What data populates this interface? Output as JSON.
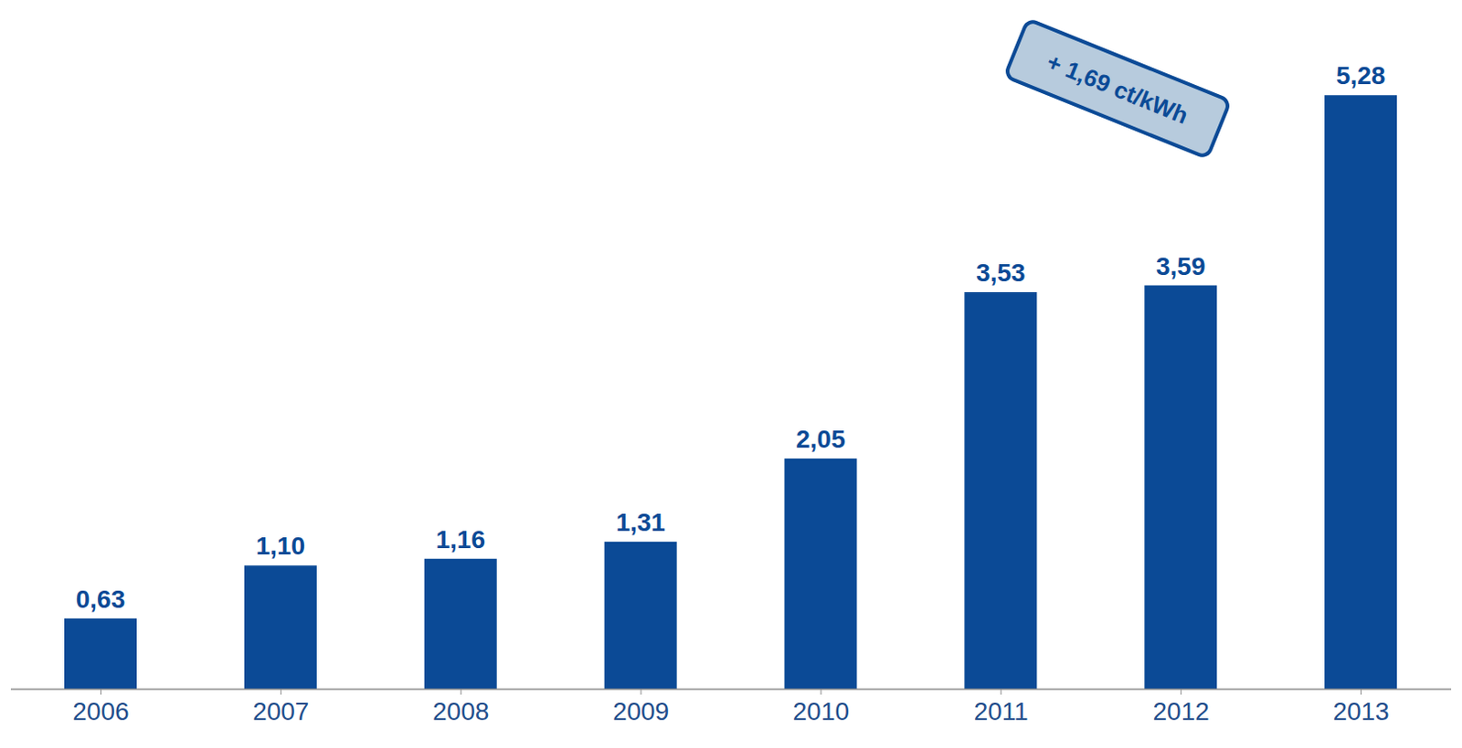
{
  "chart_data": {
    "type": "bar",
    "categories": [
      "2006",
      "2007",
      "2008",
      "2009",
      "2010",
      "2011",
      "2012",
      "2013"
    ],
    "values": [
      0.63,
      1.1,
      1.16,
      1.31,
      2.05,
      3.53,
      3.59,
      5.28
    ],
    "value_labels": [
      "0,63",
      "1,10",
      "1,16",
      "1,31",
      "2,05",
      "3,53",
      "3,59",
      "5,28"
    ],
    "data_labels": true,
    "color": "#0b4a96",
    "ylim": [
      0,
      5.5
    ],
    "tick_labels": "x",
    "grid": false,
    "annotations": [
      "+ 1,69 ct/kWh"
    ]
  }
}
